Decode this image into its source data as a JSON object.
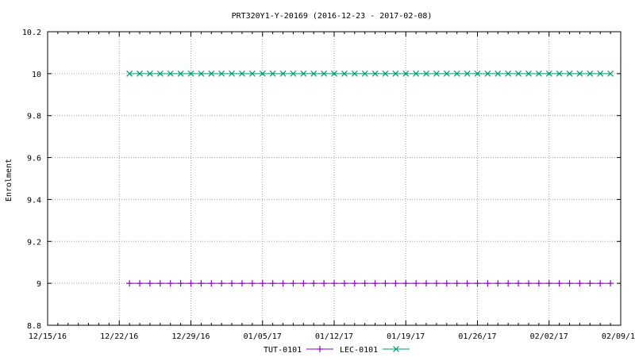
{
  "chart_data": {
    "type": "line",
    "title": "PRT320Y1-Y-20169 (2016-12-23 - 2017-02-08)",
    "xlabel": "",
    "ylabel": "Enrolment",
    "ylim": [
      8.8,
      10.2
    ],
    "yticks": [
      "8.8",
      "9",
      "9.2",
      "9.4",
      "9.6",
      "9.8",
      "10",
      "10.2"
    ],
    "xlim_days": [
      0,
      56
    ],
    "xticks": [
      {
        "day": 0,
        "label": "12/15/16"
      },
      {
        "day": 7,
        "label": "12/22/16"
      },
      {
        "day": 14,
        "label": "12/29/16"
      },
      {
        "day": 21,
        "label": "01/05/17"
      },
      {
        "day": 28,
        "label": "01/12/17"
      },
      {
        "day": 35,
        "label": "01/19/17"
      },
      {
        "day": 42,
        "label": "01/26/17"
      },
      {
        "day": 49,
        "label": "02/02/17"
      },
      {
        "day": 56,
        "label": "02/09/17"
      }
    ],
    "grid": true,
    "legend_position": "bottom-center",
    "x_start_day": 8,
    "x_end_day": 55,
    "series": [
      {
        "name": "TUT-0101",
        "color": "#9400d3",
        "marker": "plus",
        "value": 9
      },
      {
        "name": "LEC-0101",
        "color": "#009e73",
        "marker": "cross",
        "value": 10
      }
    ]
  }
}
